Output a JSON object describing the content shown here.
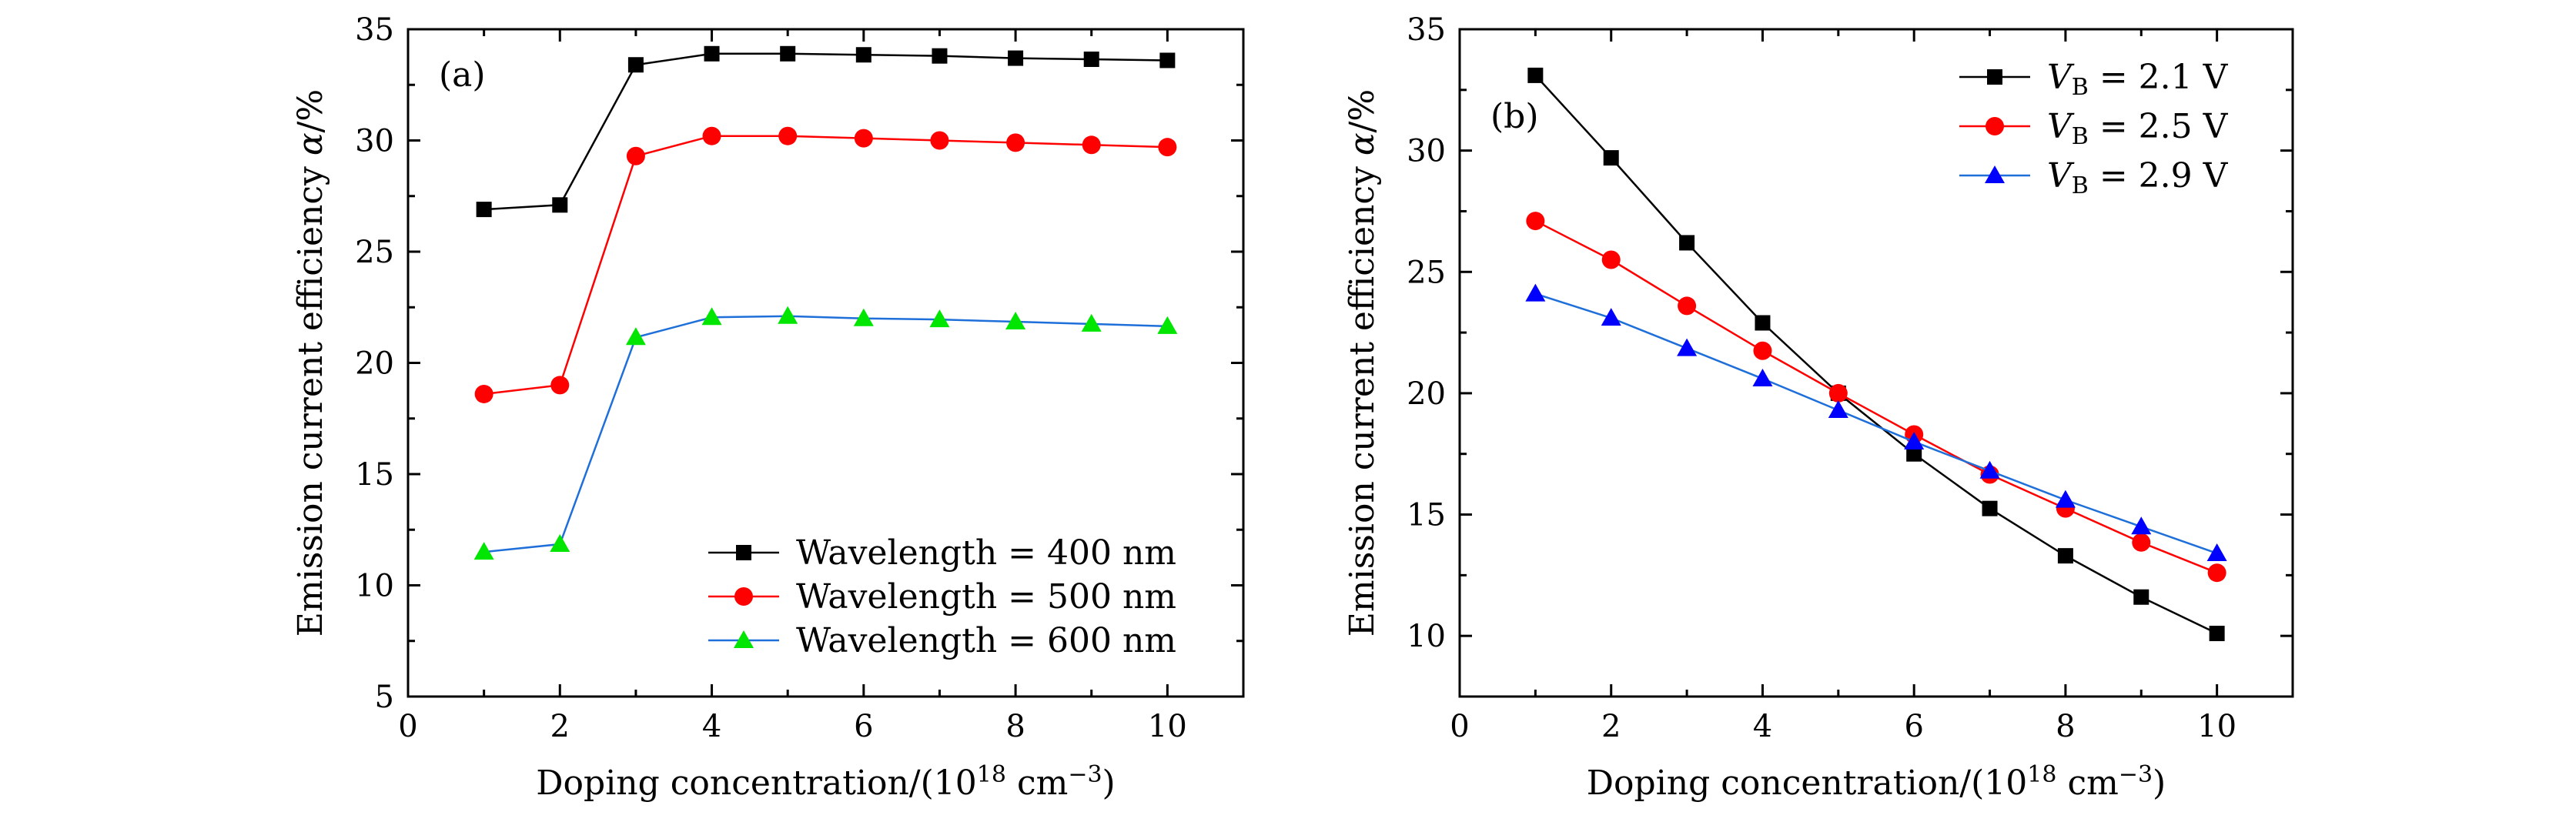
{
  "chart_data": [
    {
      "type": "line",
      "panel_label": "(a)",
      "xlabel": "Doping concentration/(10",
      "xlabel_sup": "18",
      "xlabel_unit": " cm",
      "xlabel_unit_sup": "−3",
      "xlabel_close": ")",
      "ylabel": "Emission current efficiency ",
      "ylabel_symbol": "α",
      "ylabel_unit": "/%",
      "xlim": [
        0,
        11
      ],
      "ylim": [
        5,
        35
      ],
      "xticks": [
        0,
        2,
        4,
        6,
        8,
        10
      ],
      "yticks": [
        5,
        10,
        15,
        20,
        25,
        30,
        35
      ],
      "legend_position": "bottom-right",
      "x": [
        1,
        2,
        3,
        4,
        5,
        6,
        7,
        8,
        9,
        10
      ],
      "series": [
        {
          "name": "Wavelength = 400 nm",
          "marker": "square",
          "line_color": "#000000",
          "marker_color": "#000000",
          "values": [
            26.9,
            27.1,
            33.4,
            33.9,
            33.9,
            33.85,
            33.8,
            33.7,
            33.65,
            33.6
          ]
        },
        {
          "name": "Wavelength = 500 nm",
          "marker": "circle",
          "line_color": "#ff0000",
          "marker_color": "#ff0000",
          "values": [
            18.6,
            19.0,
            29.3,
            30.2,
            30.2,
            30.1,
            30.0,
            29.9,
            29.8,
            29.7
          ]
        },
        {
          "name": "Wavelength = 600 nm",
          "marker": "triangle",
          "line_color": "#1e6fd9",
          "marker_color": "#00e600",
          "values": [
            11.5,
            11.85,
            21.15,
            22.05,
            22.1,
            22.0,
            21.95,
            21.85,
            21.75,
            21.65
          ]
        }
      ]
    },
    {
      "type": "line",
      "panel_label": "(b)",
      "xlabel": "Doping concentration/(10",
      "xlabel_sup": "18",
      "xlabel_unit": " cm",
      "xlabel_unit_sup": "−3",
      "xlabel_close": ")",
      "ylabel": "Emission current efficiency ",
      "ylabel_symbol": "α",
      "ylabel_unit": "/%",
      "xlim": [
        0,
        11
      ],
      "ylim": [
        7.5,
        35
      ],
      "xticks": [
        0,
        2,
        4,
        6,
        8,
        10
      ],
      "yticks": [
        10,
        15,
        20,
        25,
        30,
        35
      ],
      "legend_position": "top-right",
      "x": [
        1,
        2,
        3,
        4,
        5,
        6,
        7,
        8,
        9,
        10
      ],
      "series": [
        {
          "name_var": "V",
          "name_sub": "B",
          "name_value": " = 2.1 V",
          "marker": "square",
          "line_color": "#000000",
          "marker_color": "#000000",
          "values": [
            33.1,
            29.7,
            26.2,
            22.9,
            20.0,
            17.5,
            15.25,
            13.3,
            11.6,
            10.1
          ]
        },
        {
          "name_var": "V",
          "name_sub": "B",
          "name_value": " = 2.5 V",
          "marker": "circle",
          "line_color": "#ff0000",
          "marker_color": "#ff0000",
          "values": [
            27.1,
            25.5,
            23.6,
            21.75,
            20.0,
            18.3,
            16.65,
            15.25,
            13.85,
            12.6
          ]
        },
        {
          "name_var": "V",
          "name_sub": "B",
          "name_value": " = 2.9 V",
          "marker": "triangle",
          "line_color": "#1e6fd9",
          "marker_color": "#0000ff",
          "values": [
            24.1,
            23.1,
            21.85,
            20.6,
            19.3,
            18.0,
            16.8,
            15.6,
            14.5,
            13.4
          ]
        }
      ]
    }
  ]
}
